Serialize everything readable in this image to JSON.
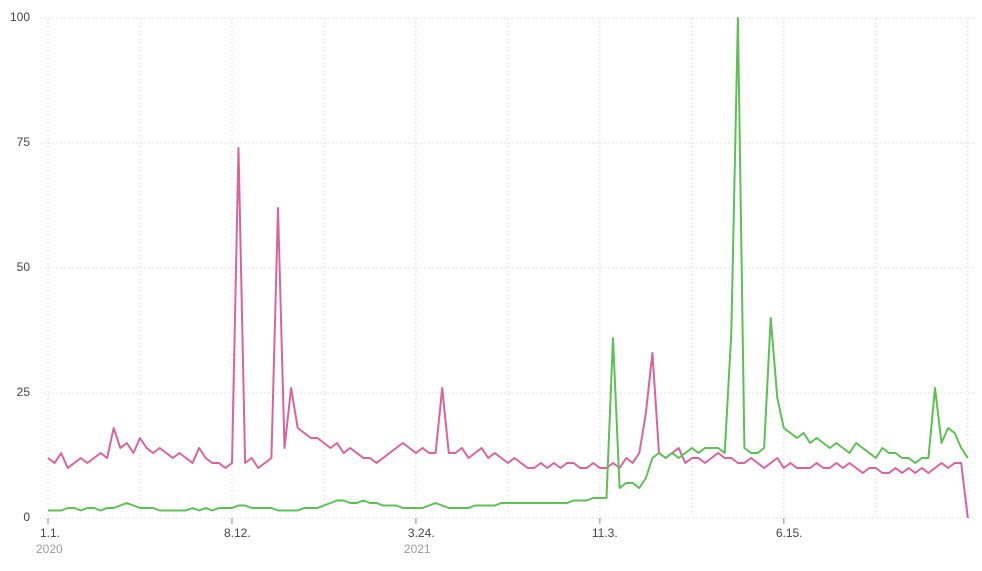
{
  "chart_data": {
    "type": "line",
    "categories": [
      "1.1.",
      null,
      null,
      null,
      null,
      null,
      null,
      null,
      null,
      null,
      null,
      null,
      null,
      null,
      null,
      null,
      null,
      null,
      null,
      null,
      null,
      null,
      null,
      null,
      null,
      null,
      null,
      null,
      "8.12.",
      null,
      null,
      null,
      null,
      null,
      null,
      null,
      null,
      null,
      null,
      null,
      null,
      null,
      null,
      null,
      null,
      null,
      null,
      null,
      null,
      null,
      null,
      null,
      null,
      null,
      null,
      null,
      "3.24.",
      null,
      null,
      null,
      null,
      null,
      null,
      null,
      null,
      null,
      null,
      null,
      null,
      null,
      null,
      null,
      null,
      null,
      null,
      null,
      null,
      null,
      null,
      null,
      null,
      null,
      null,
      null,
      "11.3.",
      null,
      null,
      null,
      null,
      null,
      null,
      null,
      null,
      null,
      null,
      null,
      null,
      null,
      null,
      null,
      null,
      null,
      null,
      null,
      null,
      null,
      null,
      null,
      null,
      null,
      null,
      null,
      "6.15.",
      null,
      null,
      null,
      null,
      null,
      null,
      null,
      null,
      null,
      null,
      null,
      null,
      null,
      null,
      null,
      null,
      null,
      null,
      null,
      null,
      null,
      null,
      null,
      null,
      null,
      null,
      null,
      null
    ],
    "category_years": [
      "2020",
      null,
      null,
      null,
      null,
      null,
      null,
      null,
      null,
      null,
      null,
      null,
      null,
      null,
      null,
      null,
      null,
      null,
      null,
      null,
      null,
      null,
      null,
      null,
      null,
      null,
      null,
      null,
      null,
      null,
      null,
      null,
      null,
      null,
      null,
      null,
      null,
      null,
      null,
      null,
      null,
      null,
      null,
      null,
      null,
      null,
      null,
      null,
      null,
      null,
      null,
      null,
      null,
      null,
      null,
      null,
      "2021",
      null,
      null,
      null,
      null,
      null,
      null,
      null,
      null,
      null,
      null,
      null,
      null,
      null,
      null,
      null,
      null,
      null,
      null,
      null,
      null,
      null,
      null,
      null,
      null,
      null,
      null,
      null,
      null,
      null,
      null,
      null,
      null,
      null,
      null,
      null,
      null,
      null,
      null,
      null,
      null,
      null,
      null,
      null,
      null,
      null,
      null,
      null,
      null,
      null,
      null,
      null,
      null,
      null,
      null,
      null,
      null,
      null,
      null,
      null,
      null,
      null,
      null,
      null,
      null,
      null,
      null,
      null,
      null,
      null,
      null,
      null,
      null,
      null,
      null,
      null,
      null,
      null,
      null,
      null,
      null,
      null,
      null,
      null,
      null
    ],
    "series": [
      {
        "color": "#d9649b",
        "values": [
          12,
          11,
          13,
          10,
          11,
          12,
          11,
          12,
          13,
          12,
          18,
          14,
          15,
          13,
          16,
          14,
          13,
          14,
          13,
          12,
          13,
          12,
          11,
          14,
          12,
          11,
          11,
          10,
          11,
          74,
          11,
          12,
          10,
          11,
          12,
          62,
          14,
          26,
          18,
          17,
          16,
          16,
          15,
          14,
          15,
          13,
          14,
          13,
          12,
          12,
          11,
          12,
          13,
          14,
          15,
          14,
          13,
          14,
          13,
          13,
          26,
          13,
          13,
          14,
          12,
          13,
          14,
          12,
          13,
          12,
          11,
          12,
          11,
          10,
          10,
          11,
          10,
          11,
          10,
          11,
          11,
          10,
          10,
          11,
          10,
          10,
          11,
          10,
          12,
          11,
          13,
          21,
          33,
          13,
          12,
          13,
          14,
          11,
          12,
          12,
          11,
          12,
          13,
          12,
          12,
          11,
          11,
          12,
          11,
          10,
          11,
          12,
          10,
          11,
          10,
          10,
          10,
          11,
          10,
          10,
          11,
          10,
          11,
          10,
          9,
          10,
          10,
          9,
          9,
          10,
          9,
          10,
          9,
          10,
          9,
          10,
          11,
          10,
          11,
          11,
          0
        ]
      },
      {
        "color": "#5cc053",
        "values": [
          1.5,
          1.5,
          1.5,
          2,
          2,
          1.5,
          2,
          2,
          1.5,
          2,
          2,
          2.5,
          3,
          2.5,
          2,
          2,
          2,
          1.5,
          1.5,
          1.5,
          1.5,
          1.5,
          2,
          1.5,
          2,
          1.5,
          2,
          2,
          2,
          2.5,
          2.5,
          2,
          2,
          2,
          2,
          1.5,
          1.5,
          1.5,
          1.5,
          2,
          2,
          2,
          2.5,
          3,
          3.5,
          3.5,
          3,
          3,
          3.5,
          3,
          3,
          2.5,
          2.5,
          2.5,
          2,
          2,
          2,
          2,
          2.5,
          3,
          2.5,
          2,
          2,
          2,
          2,
          2.5,
          2.5,
          2.5,
          2.5,
          3,
          3,
          3,
          3,
          3,
          3,
          3,
          3,
          3,
          3,
          3,
          3.5,
          3.5,
          3.5,
          4,
          4,
          4,
          36,
          6,
          7,
          7,
          6,
          8,
          12,
          13,
          12,
          13,
          12,
          13,
          14,
          13,
          14,
          14,
          14,
          13,
          37,
          100,
          14,
          13,
          13,
          14,
          40,
          24,
          18,
          17,
          16,
          17,
          15,
          16,
          15,
          14,
          15,
          14,
          13,
          15,
          14,
          13,
          12,
          14,
          13,
          13,
          12,
          12,
          11,
          12,
          12,
          26,
          15,
          18,
          17,
          14,
          12
        ]
      }
    ],
    "ylim": [
      0,
      100
    ],
    "yticks": [
      0,
      25,
      50,
      75,
      100
    ],
    "grid": true
  }
}
